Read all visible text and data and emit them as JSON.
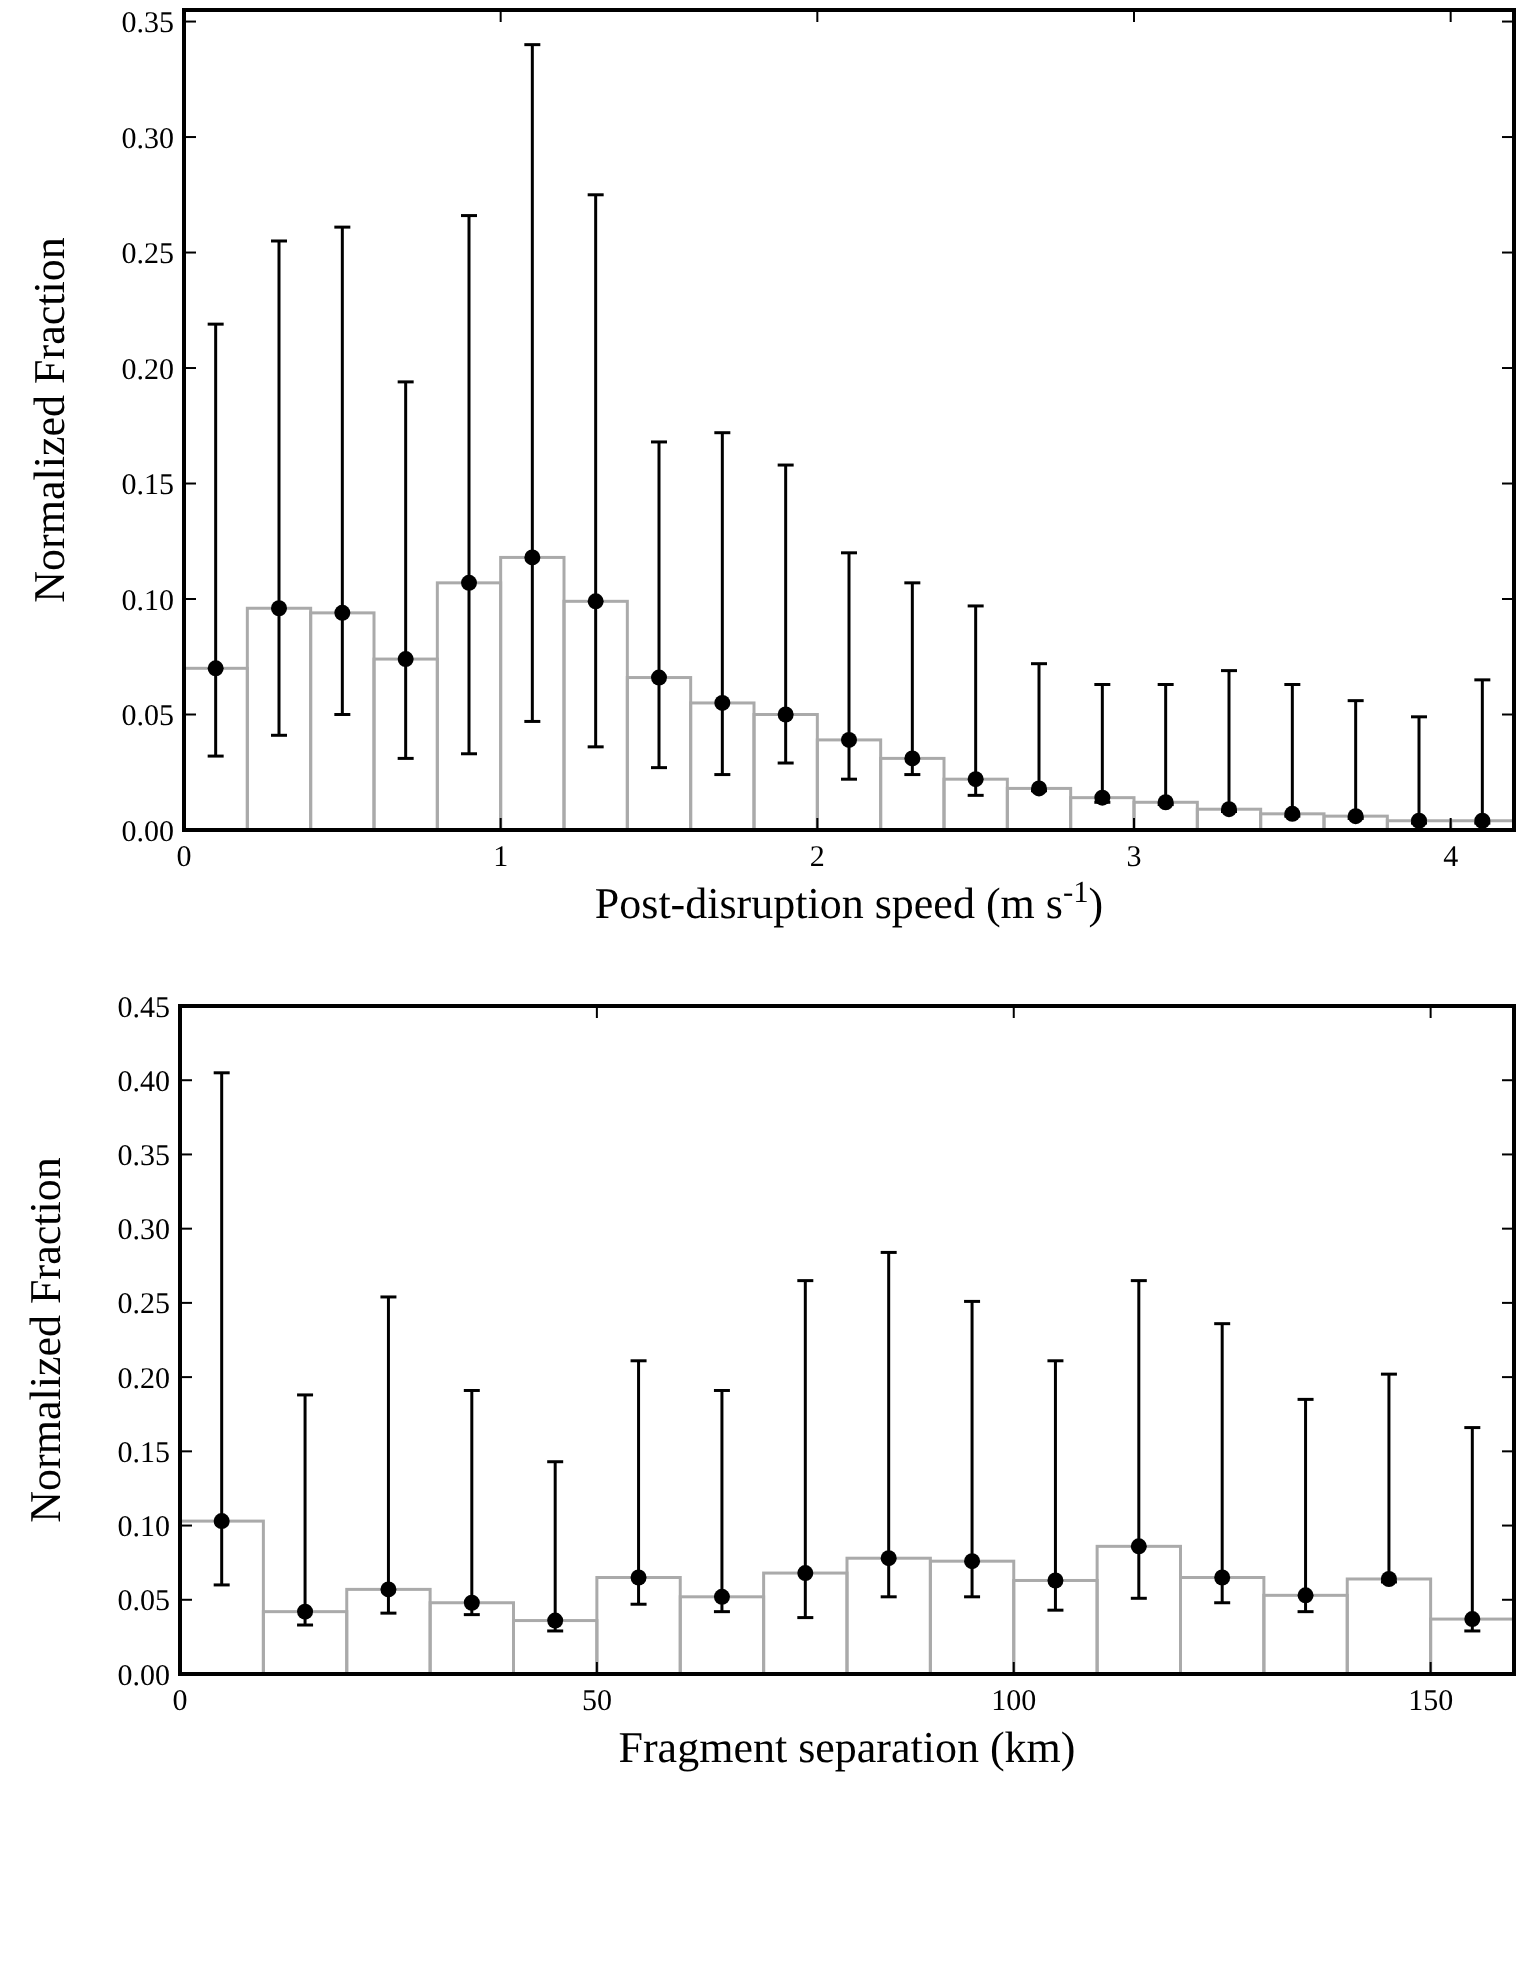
{
  "chart_data": [
    {
      "type": "histogram",
      "xlabel": "Post-disruption speed (m s$^{-1}$)",
      "ylabel": "Normalized Fraction",
      "xlim": [
        0,
        4.2
      ],
      "ylim": [
        0,
        0.355
      ],
      "xticks": [
        0,
        1,
        2,
        3,
        4
      ],
      "yticks": [
        {
          "value": 0,
          "label": "0.00"
        },
        {
          "value": 0.05,
          "label": "0.05"
        },
        {
          "value": 0.1,
          "label": "0.10"
        },
        {
          "value": 0.15,
          "label": "0.15"
        },
        {
          "value": 0.2,
          "label": "0.20"
        },
        {
          "value": 0.25,
          "label": "0.25"
        },
        {
          "value": 0.3,
          "label": "0.30"
        },
        {
          "value": 0.35,
          "label": "0.35"
        }
      ],
      "grid": false,
      "bins": [
        0,
        0.2,
        0.4,
        0.6,
        0.8,
        1.0,
        1.2,
        1.4,
        1.6,
        1.8,
        2.0,
        2.2,
        2.4,
        2.6,
        2.8,
        3.0,
        3.2,
        3.4,
        3.6,
        3.8,
        4.0,
        4.2
      ],
      "series": [
        {
          "color": "#aaaaaa",
          "values": [
            0.07,
            0.096,
            0.094,
            0.074,
            0.107,
            0.118,
            0.099,
            0.066,
            0.055,
            0.05,
            0.039,
            0.031,
            0.022,
            0.018,
            0.014,
            0.012,
            0.009,
            0.007,
            0.006,
            0.004,
            0.004
          ]
        },
        {
          "type": "scatter",
          "color": "#000000",
          "marker": "circle",
          "x": [
            0.1,
            0.3,
            0.5,
            0.7,
            0.9,
            1.1,
            1.3,
            1.5,
            1.7,
            1.9,
            2.1,
            2.3,
            2.5,
            2.7,
            2.9,
            3.1,
            3.3,
            3.5,
            3.7,
            3.9,
            4.1
          ],
          "values": [
            0.07,
            0.096,
            0.094,
            0.074,
            0.107,
            0.118,
            0.099,
            0.066,
            0.055,
            0.05,
            0.039,
            0.031,
            0.022,
            0.018,
            0.014,
            0.012,
            0.009,
            0.007,
            0.006,
            0.004,
            0.004
          ],
          "errors": [
            [
              0.032,
              0.219
            ],
            [
              0.041,
              0.255
            ],
            [
              0.05,
              0.261
            ],
            [
              0.031,
              0.194
            ],
            [
              0.033,
              0.266
            ],
            [
              0.047,
              0.34
            ],
            [
              0.036,
              0.275
            ],
            [
              0.027,
              0.168
            ],
            [
              0.024,
              0.172
            ],
            [
              0.029,
              0.158
            ],
            [
              0.022,
              0.12
            ],
            [
              0.024,
              0.107
            ],
            [
              0.015,
              0.097
            ],
            [
              0.017,
              0.072
            ],
            [
              0.012,
              0.063
            ],
            [
              0.011,
              0.063
            ],
            [
              0.008,
              0.069
            ],
            [
              0.006,
              0.063
            ],
            [
              0.005,
              0.056
            ],
            [
              0.003,
              0.049
            ],
            [
              0.003,
              0.065
            ]
          ]
        }
      ]
    },
    {
      "type": "histogram",
      "xlabel": "Fragment separation (km)",
      "ylabel": "Normalized Fraction",
      "xlim": [
        0,
        160
      ],
      "ylim": [
        0,
        0.45
      ],
      "xticks": [
        0,
        50,
        100,
        150
      ],
      "yticks": [
        {
          "value": 0,
          "label": "0.00"
        },
        {
          "value": 0.05,
          "label": "0.05"
        },
        {
          "value": 0.1,
          "label": "0.10"
        },
        {
          "value": 0.15,
          "label": "0.15"
        },
        {
          "value": 0.2,
          "label": "0.20"
        },
        {
          "value": 0.25,
          "label": "0.25"
        },
        {
          "value": 0.3,
          "label": "0.30"
        },
        {
          "value": 0.35,
          "label": "0.35"
        },
        {
          "value": 0.4,
          "label": "0.40"
        },
        {
          "value": 0.45,
          "label": "0.45"
        }
      ],
      "grid": false,
      "bins": [
        0,
        10,
        20,
        30,
        40,
        50,
        60,
        70,
        80,
        90,
        100,
        110,
        120,
        130,
        140,
        150,
        160
      ],
      "series": [
        {
          "color": "#aaaaaa",
          "values": [
            0.103,
            0.042,
            0.057,
            0.048,
            0.036,
            0.065,
            0.052,
            0.068,
            0.078,
            0.076,
            0.063,
            0.086,
            0.065,
            0.053,
            0.064,
            0.037
          ]
        },
        {
          "type": "scatter",
          "color": "#000000",
          "marker": "circle",
          "x": [
            5,
            15,
            25,
            35,
            45,
            55,
            65,
            75,
            85,
            95,
            105,
            115,
            125,
            135,
            145,
            155
          ],
          "values": [
            0.103,
            0.042,
            0.057,
            0.048,
            0.036,
            0.065,
            0.052,
            0.068,
            0.078,
            0.076,
            0.063,
            0.086,
            0.065,
            0.053,
            0.064,
            0.037
          ],
          "errors": [
            [
              0.06,
              0.405
            ],
            [
              0.033,
              0.188
            ],
            [
              0.041,
              0.254
            ],
            [
              0.04,
              0.191
            ],
            [
              0.029,
              0.143
            ],
            [
              0.047,
              0.211
            ],
            [
              0.042,
              0.191
            ],
            [
              0.038,
              0.265
            ],
            [
              0.052,
              0.284
            ],
            [
              0.052,
              0.251
            ],
            [
              0.043,
              0.211
            ],
            [
              0.051,
              0.265
            ],
            [
              0.048,
              0.236
            ],
            [
              0.042,
              0.185
            ],
            [
              0.062,
              0.202
            ],
            [
              0.029,
              0.166
            ]
          ]
        }
      ]
    }
  ]
}
